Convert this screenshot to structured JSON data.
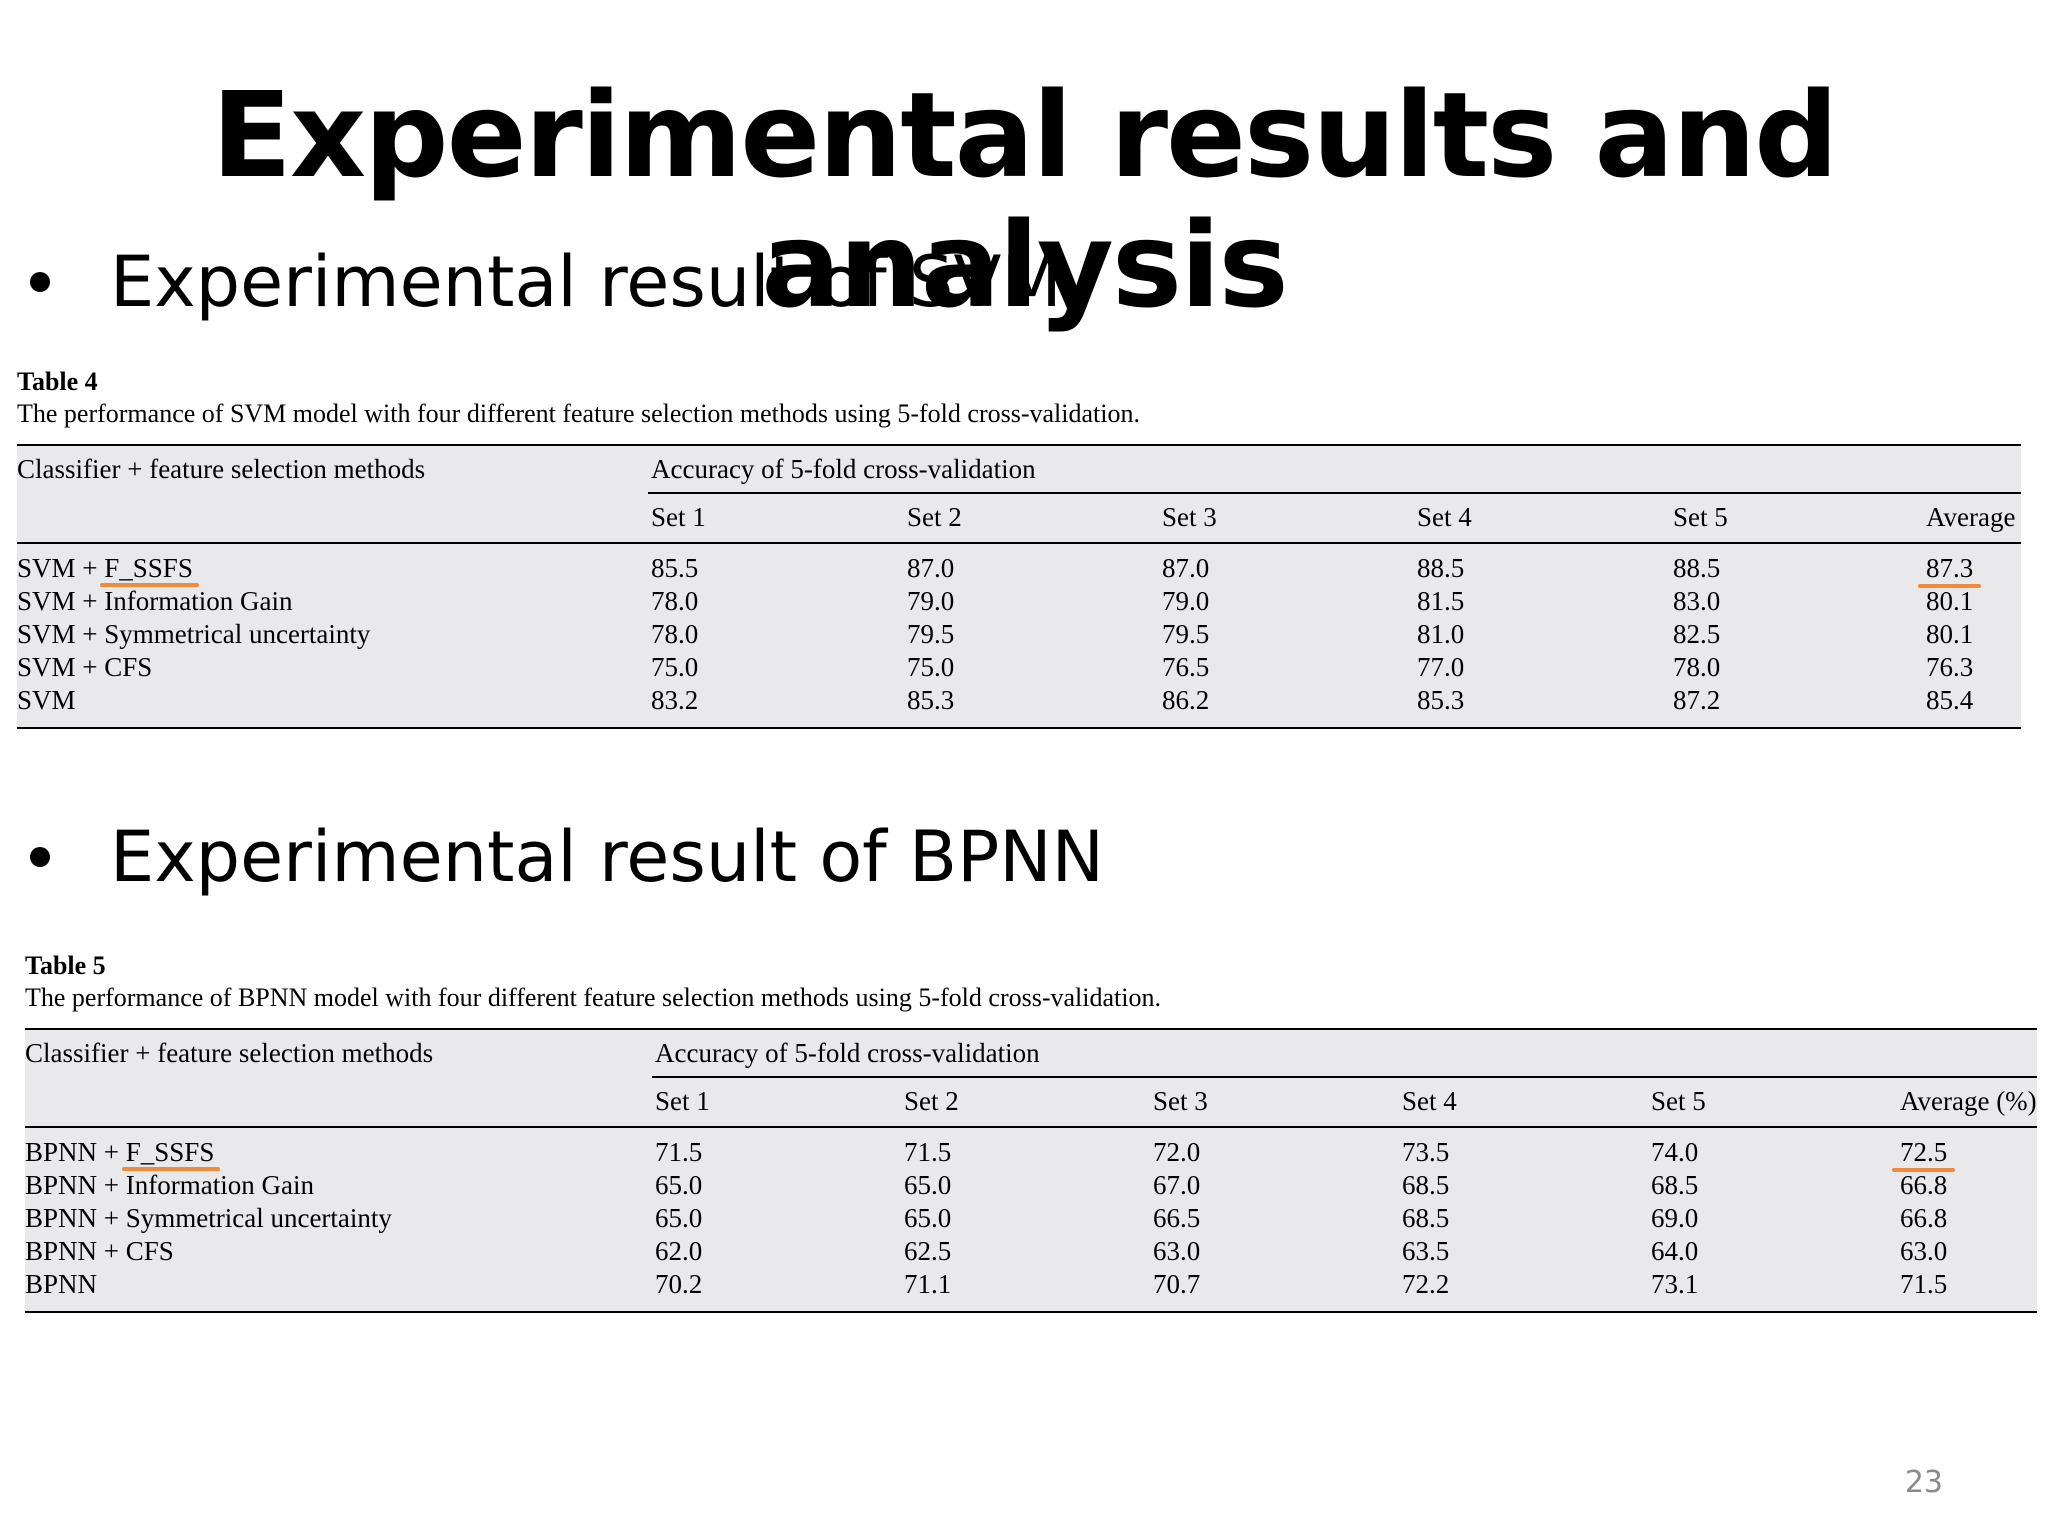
{
  "slide": {
    "title": "Experimental results and analysis",
    "page_number": "23"
  },
  "sections": [
    {
      "bullet": "Experimental result of SVM",
      "table": {
        "label": "Table 4",
        "caption": "The performance of SVM model with four different feature selection methods using 5-fold cross-validation.",
        "col0_header": "Classifier + feature selection methods",
        "group_header": "Accuracy of 5-fold cross-validation",
        "columns": [
          "Set 1",
          "Set 2",
          "Set 3",
          "Set 4",
          "Set 5",
          "Average"
        ],
        "rows": [
          {
            "method_prefix": "SVM + ",
            "method_name": "F_SSFS",
            "values": [
              "85.5",
              "87.0",
              "87.0",
              "88.5",
              "88.5",
              "87.3"
            ],
            "highlight": true
          },
          {
            "method_prefix": "SVM + ",
            "method_name": "Information Gain",
            "values": [
              "78.0",
              "79.0",
              "79.0",
              "81.5",
              "83.0",
              "80.1"
            ],
            "highlight": false
          },
          {
            "method_prefix": "SVM + ",
            "method_name": "Symmetrical uncertainty",
            "values": [
              "78.0",
              "79.5",
              "79.5",
              "81.0",
              "82.5",
              "80.1"
            ],
            "highlight": false
          },
          {
            "method_prefix": "SVM + ",
            "method_name": "CFS",
            "values": [
              "75.0",
              "75.0",
              "76.5",
              "77.0",
              "78.0",
              "76.3"
            ],
            "highlight": false
          },
          {
            "method_prefix": "",
            "method_name": "SVM",
            "values": [
              "83.2",
              "85.3",
              "86.2",
              "85.3",
              "87.2",
              "85.4"
            ],
            "highlight": false
          }
        ]
      }
    },
    {
      "bullet": "Experimental result of BPNN",
      "table": {
        "label": "Table 5",
        "caption": "The performance of BPNN model with four different feature selection methods using 5-fold cross-validation.",
        "col0_header": "Classifier + feature selection methods",
        "group_header": "Accuracy of 5-fold cross-validation",
        "columns": [
          "Set 1",
          "Set 2",
          "Set 3",
          "Set 4",
          "Set 5",
          "Average (%)"
        ],
        "rows": [
          {
            "method_prefix": "BPNN + ",
            "method_name": "F_SSFS",
            "values": [
              "71.5",
              "71.5",
              "72.0",
              "73.5",
              "74.0",
              "72.5"
            ],
            "highlight": true
          },
          {
            "method_prefix": "BPNN + ",
            "method_name": "Information Gain",
            "values": [
              "65.0",
              "65.0",
              "67.0",
              "68.5",
              "68.5",
              "66.8"
            ],
            "highlight": false
          },
          {
            "method_prefix": "BPNN + ",
            "method_name": "Symmetrical uncertainty",
            "values": [
              "65.0",
              "65.0",
              "66.5",
              "68.5",
              "69.0",
              "66.8"
            ],
            "highlight": false
          },
          {
            "method_prefix": "BPNN + ",
            "method_name": "CFS",
            "values": [
              "62.0",
              "62.5",
              "63.0",
              "63.5",
              "64.0",
              "63.0"
            ],
            "highlight": false
          },
          {
            "method_prefix": "",
            "method_name": "BPNN",
            "values": [
              "70.2",
              "71.1",
              "70.7",
              "72.2",
              "73.1",
              "71.5"
            ],
            "highlight": false
          }
        ]
      }
    }
  ],
  "colors": {
    "table_background": "#e9e9ec",
    "highlight_underline": "#f08a3c",
    "page_number": "#8a8a8a"
  }
}
